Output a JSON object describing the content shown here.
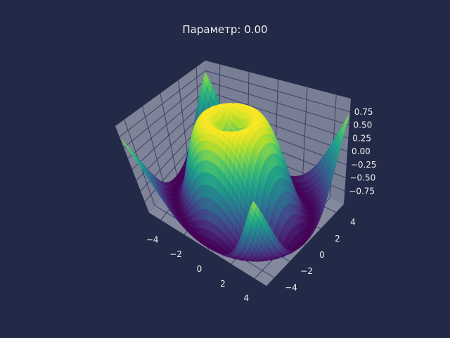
{
  "title": "Параметр: 0.00",
  "colors": {
    "background": "#222a47",
    "pane": "#8f93a6",
    "grid": "#3a4264",
    "text": "#f0f0f0",
    "colormap": "viridis"
  },
  "chart_data": {
    "type": "surface",
    "title": "Параметр: 0.00",
    "xlabel": "",
    "ylabel": "",
    "zlabel": "",
    "xlim": [
      -5,
      5
    ],
    "ylim": [
      -5,
      5
    ],
    "zlim": [
      -1,
      1
    ],
    "x_ticks": [
      "−4",
      "−2",
      "0",
      "2",
      "4"
    ],
    "y_ticks": [
      "−4",
      "−2",
      "0",
      "2",
      "4"
    ],
    "z_ticks": [
      "0.75",
      "0.50",
      "0.25",
      "0.00",
      "−0.25",
      "−0.50",
      "−0.75"
    ],
    "function": "z = sin(sqrt(x^2 + y^2))",
    "grid": true,
    "colormap": "viridis"
  }
}
